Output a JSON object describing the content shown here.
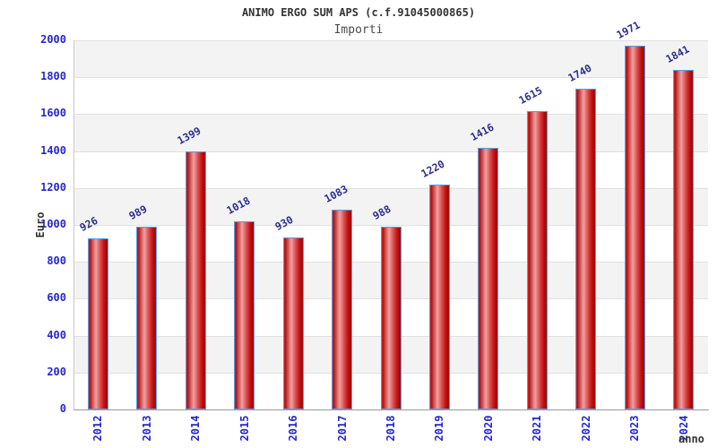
{
  "page": {
    "background": "#ffffff"
  },
  "chart_data": {
    "type": "bar",
    "title": "ANIMO ERGO SUM APS (c.f.91045000865)",
    "subtitle": "Importi",
    "xlabel": "anno",
    "ylabel": "Euro",
    "categories": [
      "2012",
      "2013",
      "2014",
      "2015",
      "2016",
      "2017",
      "2018",
      "2019",
      "2020",
      "2021",
      "2022",
      "2023",
      "2024"
    ],
    "values": [
      926,
      989,
      1399,
      1018,
      930,
      1083,
      988,
      1220,
      1416,
      1615,
      1740,
      1971,
      1841
    ],
    "ylim": [
      0,
      2000
    ],
    "ytick_step": 200,
    "ytick_labels": [
      "0",
      "200",
      "400",
      "600",
      "800",
      "1000",
      "1200",
      "1400",
      "1600",
      "1800",
      "2000"
    ],
    "grid": true,
    "legend_position": "none",
    "value_labels_shown": true,
    "colors": {
      "bar_fill": "#d32020",
      "bar_highlight": "#ef9c9c",
      "bar_border": "#4da3f0",
      "axis_tick_label": "#2626cd",
      "value_label": "#2e2e8e",
      "title": "#333333",
      "axis_title": "#333333",
      "band_gray": "#f3f3f3",
      "band_white": "#ffffff",
      "gridline": "#e0e0e0",
      "x_axis_line": "#999999",
      "y_axis_line": "#c9c9c9"
    }
  }
}
